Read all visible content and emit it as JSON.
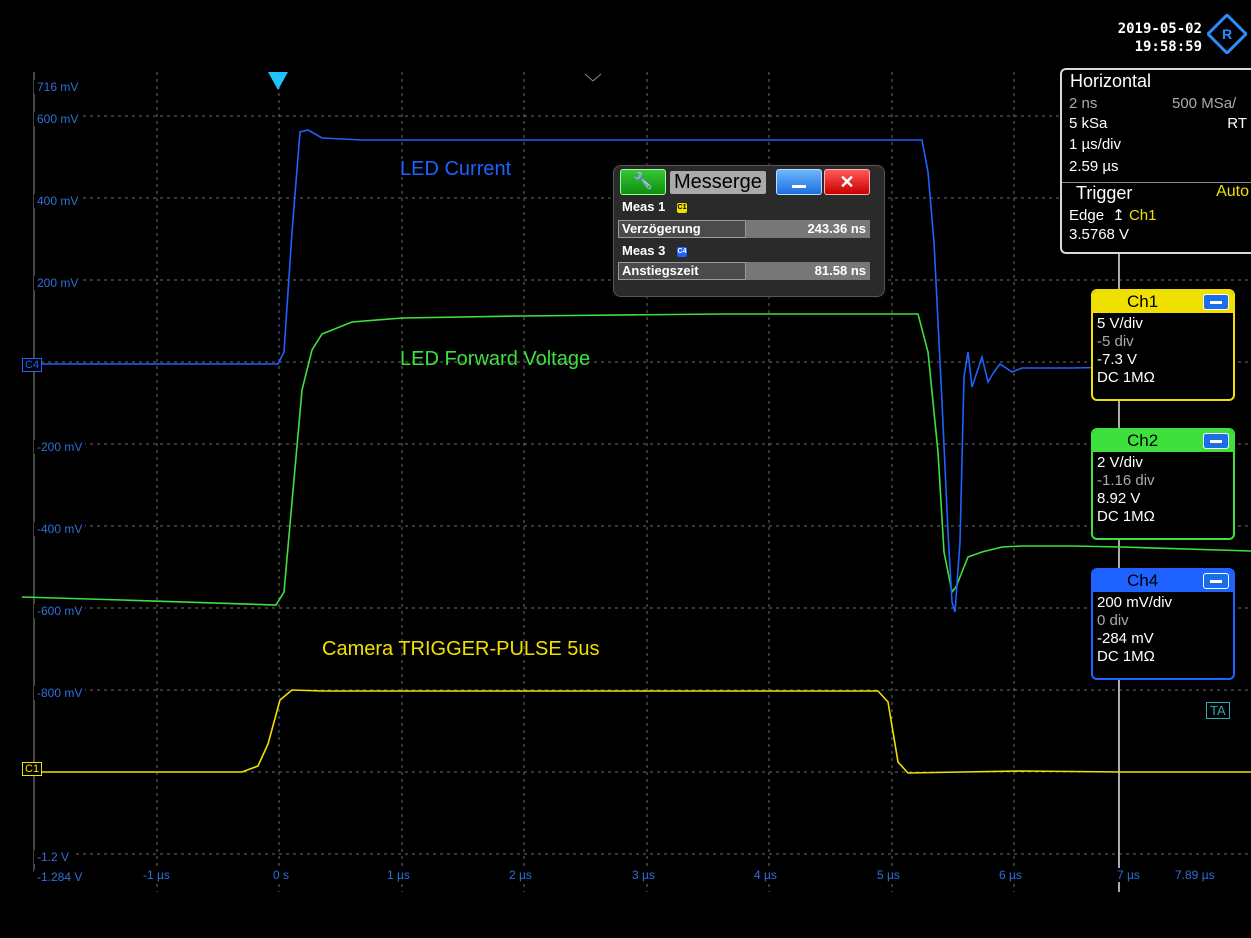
{
  "datetime": {
    "date": "2019-05-02",
    "time": "19:58:59"
  },
  "y_axis_labels": [
    "716 mV",
    "600 mV",
    "400 mV",
    "200 mV",
    "-200 mV",
    "-400 mV",
    "-600 mV",
    "-800 mV",
    "-1.2 V",
    "-1.284 V"
  ],
  "x_axis_labels": [
    "-1 µs",
    "0 s",
    "1 µs",
    "2 µs",
    "3 µs",
    "4 µs",
    "5 µs",
    "6 µs",
    "7 µs",
    "7.89 µs"
  ],
  "trace_labels": {
    "current": "LED Current",
    "voltage": "LED Forward Voltage",
    "trigger": "Camera TRIGGER-PULSE 5us"
  },
  "colors": {
    "ch1": "#f0e000",
    "ch2": "#3ee03e",
    "ch4": "#1e62ff",
    "grid": "#6e6e6e"
  },
  "measurement": {
    "title": "Messerge",
    "meas1": {
      "label": "Meas 1",
      "chip": "C1",
      "name": "Verzögerung",
      "value": "243.36 ns"
    },
    "meas3": {
      "label": "Meas 3",
      "chip": "C4",
      "name": "Anstiegszeit",
      "value": "81.58 ns"
    }
  },
  "horizontal": {
    "title": "Horizontal",
    "resolution": "2 ns",
    "sample_rate": "500 MSa/",
    "record_length": "5 kSa",
    "mode": "RT",
    "scale": "1 µs/div",
    "position": "2.59 µs"
  },
  "trigger": {
    "title": "Trigger",
    "mode": "Auto",
    "type": "Edge",
    "source": "Ch1",
    "level": "3.5768 V"
  },
  "channels": [
    {
      "name": "Ch1",
      "scale": "5 V/div",
      "offset_div": "-5 div",
      "offset": "-7.3 V",
      "coupling": "DC 1MΩ"
    },
    {
      "name": "Ch2",
      "scale": "2 V/div",
      "offset_div": "-1.16 div",
      "offset": "8.92 V",
      "coupling": "DC 1MΩ"
    },
    {
      "name": "Ch4",
      "scale": "200 mV/div",
      "offset_div": "0 div",
      "offset": "-284 mV",
      "coupling": "DC 1MΩ"
    }
  ],
  "markers": {
    "c4": "C4",
    "c1": "C1",
    "ta": "TA"
  }
}
